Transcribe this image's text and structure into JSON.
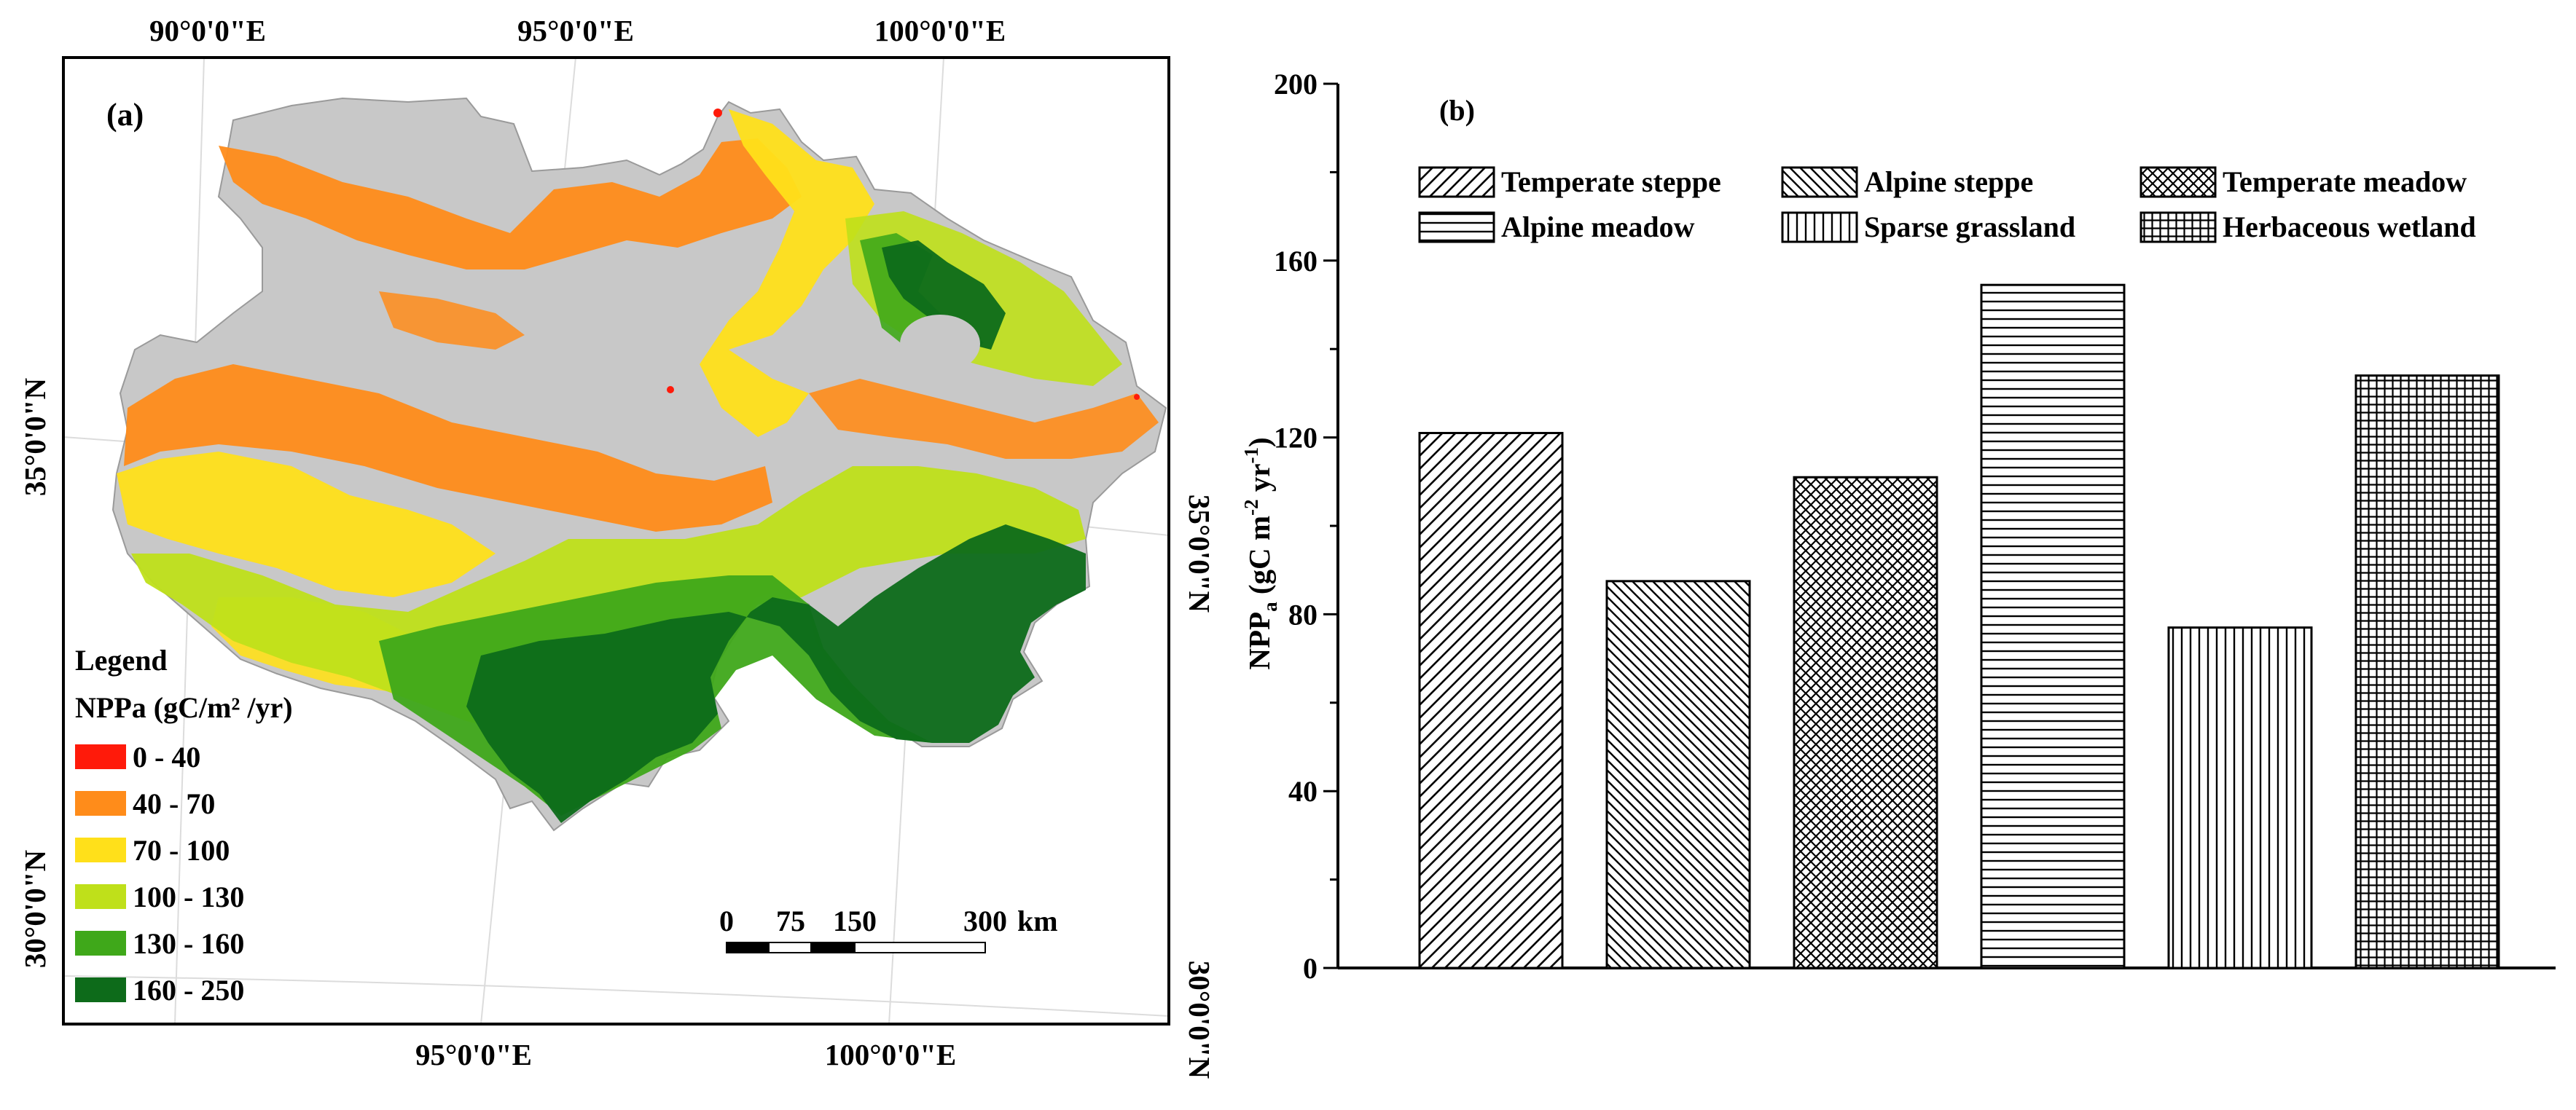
{
  "panel_a": {
    "label": "(a)",
    "top_lon_labels": [
      "90°0'0\"E",
      "95°0'0\"E",
      "100°0'0\"E"
    ],
    "bottom_lon_labels": [
      "95°0'0\"E",
      "100°0'0\"E"
    ],
    "left_lat_labels": [
      "35°0'0\"N",
      "30°0'0\"N"
    ],
    "right_lat_labels": [
      "35°0'0\"N",
      "30°0'0\"N"
    ],
    "legend": {
      "title": "Legend",
      "subtitle": "NPPa (gC/m² /yr)",
      "classes": [
        {
          "label": "0 - 40",
          "color": "#ff1a0a"
        },
        {
          "label": "40 - 70",
          "color": "#ff8c1a"
        },
        {
          "label": "70 - 100",
          "color": "#ffe01a"
        },
        {
          "label": "100 - 130",
          "color": "#bfe01a"
        },
        {
          "label": "130 - 160",
          "color": "#3fa81a"
        },
        {
          "label": "160 - 250",
          "color": "#0d6b1a"
        }
      ],
      "nodata_color": "#c8c8c8"
    },
    "scale_bar": {
      "ticks": [
        "0",
        "75",
        "150",
        "300"
      ],
      "unit": "km"
    }
  },
  "chart_data": {
    "type": "bar",
    "panel_label": "(b)",
    "categories": [
      "Temperate steppe",
      "Alpine steppe",
      "Temperate meadow",
      "Alpine meadow",
      "Sparse grassland",
      "Herbaceous wetland"
    ],
    "values": [
      121,
      87.5,
      111,
      154.5,
      77,
      134
    ],
    "patterns": [
      "diag-fwd",
      "diag-back",
      "crosshatch",
      "horizontal",
      "vertical",
      "grid"
    ],
    "ylabel": "NPPa (gC m-2 yr-1)",
    "ylim": [
      0,
      200
    ],
    "yticks": [
      "0",
      "40",
      "80",
      "120",
      "160",
      "200"
    ],
    "legend_position": "top"
  }
}
